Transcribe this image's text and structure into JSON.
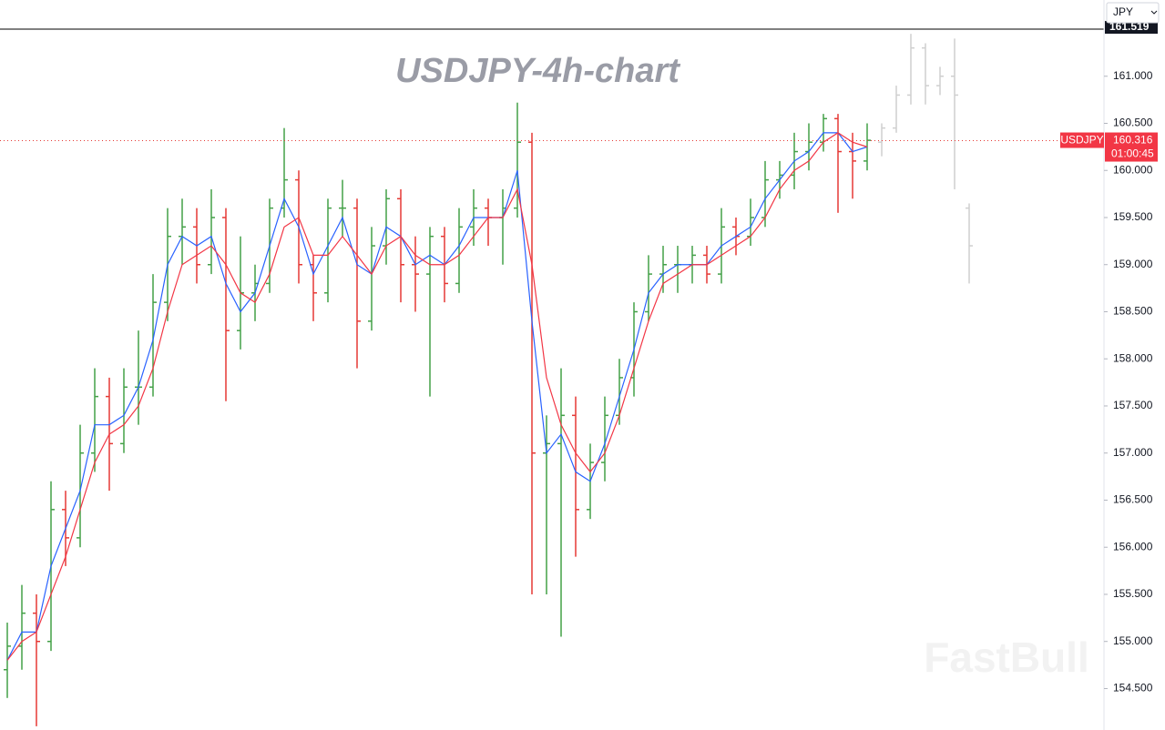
{
  "chart_data": {
    "type": "ohlc",
    "title": "USDJPY-4h-chart",
    "symbol": "USDJPY",
    "currency": "JPY",
    "watermark": "FastBull",
    "countdown": "01:00:45",
    "last_price": {
      "value": 160.316,
      "label": "160.316"
    },
    "top_price": {
      "value": 161.519,
      "label": "161.519"
    },
    "ylim": [
      154.06,
      161.5
    ],
    "yticks": [
      {
        "value": 154.5,
        "label": "154.500"
      },
      {
        "value": 155,
        "label": "155.000"
      },
      {
        "value": 155.5,
        "label": "155.500"
      },
      {
        "value": 156,
        "label": "156.000"
      },
      {
        "value": 156.5,
        "label": "156.500"
      },
      {
        "value": 157,
        "label": "157.000"
      },
      {
        "value": 157.5,
        "label": "157.500"
      },
      {
        "value": 158,
        "label": "158.000"
      },
      {
        "value": 158.5,
        "label": "158.500"
      },
      {
        "value": 159,
        "label": "159.000"
      },
      {
        "value": 159.5,
        "label": "159.500"
      },
      {
        "value": 160,
        "label": "160.000"
      },
      {
        "value": 160.5,
        "label": "160.500"
      },
      {
        "value": 161,
        "label": "161.000"
      }
    ],
    "up_color": "#43a047",
    "down_color": "#e53935",
    "ghost_color": "#cfcfcf",
    "open": [
      154.7,
      154.95,
      155.3,
      155.0,
      156.4,
      156.1,
      157.0,
      157.6,
      157.1,
      157.7,
      157.7,
      158.6,
      159.3,
      159.4,
      159.0,
      159.5,
      158.3,
      158.7,
      158.8,
      159.6,
      159.9,
      159.0,
      158.7,
      159.6,
      159.6,
      158.4,
      159.2,
      159.7,
      159.0,
      158.9,
      159.3,
      158.8,
      159.4,
      159.6,
      159.5,
      159.6,
      160.3,
      157.0,
      157.1,
      157.4,
      156.4,
      156.9,
      157.4,
      157.8,
      158.5,
      158.9,
      159.0,
      159.0,
      159.1,
      158.9,
      159.4,
      159.3,
      159.5,
      159.9,
      159.95,
      160.2,
      160.3,
      160.55,
      160.2,
      160.1
    ],
    "high": [
      155.2,
      155.6,
      155.5,
      156.7,
      156.6,
      157.3,
      157.9,
      157.8,
      157.9,
      158.3,
      158.9,
      159.6,
      159.7,
      159.6,
      159.8,
      159.6,
      159.3,
      159.0,
      159.7,
      160.45,
      160.0,
      159.1,
      159.7,
      159.9,
      159.7,
      159.4,
      159.8,
      159.8,
      159.3,
      159.4,
      159.4,
      159.6,
      159.8,
      159.7,
      159.8,
      160.72,
      160.4,
      157.4,
      157.9,
      157.6,
      157.1,
      157.6,
      158.0,
      158.6,
      159.1,
      159.2,
      159.2,
      159.2,
      159.2,
      159.6,
      159.5,
      159.7,
      160.1,
      160.1,
      160.4,
      160.5,
      160.6,
      160.6,
      160.4,
      160.5
    ],
    "low": [
      154.4,
      154.7,
      154.1,
      154.9,
      155.8,
      156.0,
      156.8,
      156.6,
      157.0,
      157.3,
      157.6,
      158.4,
      159.0,
      158.8,
      158.9,
      157.55,
      158.1,
      158.4,
      158.7,
      159.5,
      158.8,
      158.4,
      158.6,
      159.3,
      157.9,
      158.3,
      159.0,
      158.6,
      158.5,
      157.6,
      158.6,
      158.7,
      159.2,
      159.2,
      159.0,
      159.5,
      155.5,
      155.5,
      155.05,
      155.9,
      156.3,
      156.7,
      157.3,
      157.6,
      158.4,
      158.7,
      158.7,
      158.8,
      158.8,
      158.8,
      159.1,
      159.2,
      159.4,
      159.7,
      159.8,
      160.0,
      160.2,
      159.55,
      159.7,
      160.0
    ],
    "close": [
      154.95,
      155.3,
      155.0,
      156.4,
      156.1,
      157.0,
      157.6,
      157.1,
      157.7,
      157.7,
      158.6,
      159.3,
      159.4,
      159.0,
      159.5,
      158.3,
      158.7,
      158.8,
      159.6,
      159.9,
      159.0,
      158.7,
      159.6,
      159.6,
      158.4,
      159.2,
      159.7,
      159.0,
      158.9,
      159.3,
      158.8,
      159.4,
      159.6,
      159.5,
      159.6,
      160.3,
      157.0,
      157.1,
      157.4,
      156.4,
      156.9,
      157.4,
      157.8,
      158.5,
      158.9,
      159.0,
      159.0,
      159.1,
      158.9,
      159.4,
      159.3,
      159.5,
      159.9,
      159.95,
      160.2,
      160.3,
      160.55,
      160.2,
      160.1,
      160.32
    ],
    "lines": [
      {
        "color": "#2962ff",
        "values": [
          154.8,
          155.1,
          155.1,
          155.8,
          156.2,
          156.6,
          157.3,
          157.3,
          157.4,
          157.7,
          158.2,
          159.0,
          159.3,
          159.2,
          159.3,
          158.8,
          158.5,
          158.7,
          159.2,
          159.7,
          159.4,
          158.9,
          159.2,
          159.5,
          159.0,
          158.9,
          159.4,
          159.3,
          159.0,
          159.1,
          159.0,
          159.2,
          159.5,
          159.5,
          159.5,
          160.0,
          158.4,
          157.0,
          157.2,
          156.8,
          156.7,
          157.1,
          157.6,
          158.1,
          158.7,
          158.9,
          159.0,
          159.0,
          159.0,
          159.2,
          159.3,
          159.4,
          159.7,
          159.9,
          160.1,
          160.2,
          160.4,
          160.4,
          160.2,
          160.25
        ]
      },
      {
        "color": "#f23645",
        "values": [
          154.8,
          155.0,
          155.1,
          155.5,
          155.9,
          156.4,
          156.9,
          157.2,
          157.3,
          157.5,
          157.9,
          158.5,
          159.0,
          159.1,
          159.2,
          159.0,
          158.7,
          158.6,
          158.9,
          159.4,
          159.5,
          159.1,
          159.1,
          159.3,
          159.1,
          158.9,
          159.2,
          159.3,
          159.1,
          159.0,
          159.0,
          159.1,
          159.3,
          159.5,
          159.5,
          159.8,
          159.0,
          157.8,
          157.3,
          157.0,
          156.8,
          157.0,
          157.4,
          157.9,
          158.4,
          158.8,
          158.9,
          159.0,
          159.0,
          159.1,
          159.2,
          159.3,
          159.5,
          159.8,
          160.0,
          160.1,
          160.3,
          160.4,
          160.3,
          160.25
        ]
      }
    ],
    "ghost": {
      "open": [
        160.3,
        160.45,
        160.8,
        161.3,
        160.9,
        161.0,
        159.6
      ],
      "high": [
        160.5,
        160.9,
        161.45,
        161.35,
        161.1,
        161.4,
        159.65
      ],
      "low": [
        160.15,
        160.4,
        160.7,
        160.7,
        160.8,
        159.8,
        158.8
      ],
      "close": [
        160.45,
        160.8,
        161.3,
        160.9,
        161.0,
        160.8,
        159.2
      ]
    }
  }
}
